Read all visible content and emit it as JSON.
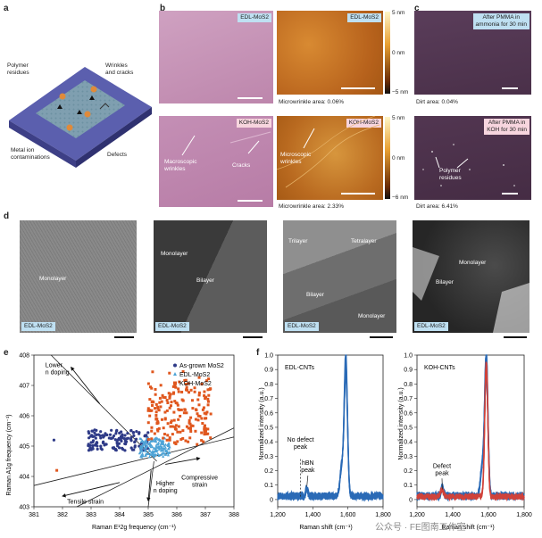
{
  "panel_labels": {
    "a": "a",
    "b": "b",
    "c": "c",
    "d": "d",
    "e": "e",
    "f": "f"
  },
  "panel_a": {
    "labels": {
      "polymer": "Polymer\nresidues",
      "wrinkles": "Wrinkles\nand cracks",
      "metal": "Metal ion\ncontaminations",
      "defects": "Defects"
    }
  },
  "panel_b": {
    "tags": {
      "edl_optical": "EDL-MoS2",
      "edl_afm": "EDL-MoS2",
      "koh_optical": "KOH-MoS2",
      "koh_afm": "KOH-MoS2"
    },
    "captions": {
      "edl": "Microwrinkle area: 0.06%",
      "koh": "Microwrinkle area: 2.33%"
    },
    "annotations": {
      "macro": "Macroscopic\nwrinkles",
      "cracks": "Cracks",
      "micro": "Microscopic\nwrinkles"
    },
    "colorbar_ticks": [
      "5 nm",
      "0 nm",
      "−5 nm"
    ],
    "colorbar_ticks_2": [
      "5 nm",
      "0 nm",
      "−6 nm"
    ],
    "colors": {
      "optical_top": "#c38fb2",
      "optical_bottom": "#bb7ea9",
      "afm": "#c4701f"
    }
  },
  "panel_c": {
    "tags": {
      "top": "After PMMA in\nammonia for 30 min",
      "bottom": "After PMMA in\nKOH for 30 min"
    },
    "captions": {
      "top": "Dirt area: 0.04%",
      "bottom": "Dirt area: 6.41%"
    },
    "annotation": "Polymer\nresidues"
  },
  "panel_d": {
    "images": [
      {
        "tag": "EDL-MoS2",
        "labels": [
          "Monolayer"
        ]
      },
      {
        "tag": "EDL-MoS2",
        "labels": [
          "Monolayer",
          "Bilayer"
        ]
      },
      {
        "tag": "EDL-MoS2",
        "labels": [
          "Trilayer",
          "Tetralayer",
          "Bilayer",
          "Monolayer"
        ]
      },
      {
        "tag": "EDL-MoS2",
        "labels": [
          "Monolayer",
          "Bilayer"
        ]
      }
    ]
  },
  "panel_e": {
    "xlabel": "Raman E¹2g frequency (cm⁻¹)",
    "ylabel": "Raman A1g frequency (cm⁻¹)",
    "annotations": {
      "lower": "Lower\nn doping",
      "higher": "Higher\nn doping",
      "compressive": "Compressive\nstrain",
      "tensile": "Tensile strain"
    },
    "legend": [
      "As-grown MoS2",
      "EDL-MoS2",
      "KOH-MoS2"
    ],
    "colors": {
      "asgrown": "#2e3a87",
      "edl": "#4da3d6",
      "koh": "#e0571e"
    }
  },
  "panel_f": {
    "xlabel": "Raman shift (cm⁻¹)",
    "ylabel": "Normalized intensity (a.u.)",
    "left": {
      "series_label": "EDL-CNTs",
      "annotations": {
        "no_defect": "No defect\npeak",
        "hbn": "hBN\npeak"
      }
    },
    "right": {
      "series_label": "KOH-CNTs",
      "annotations": {
        "defect": "Defect\npeak"
      }
    },
    "colors": {
      "blue": "#2a6ab6",
      "red": "#d0423a"
    }
  },
  "watermark": "公众号 · FE图南工作室",
  "chart_data": [
    {
      "type": "scatter",
      "title": "",
      "xlabel": "Raman E¹2g frequency (cm⁻¹)",
      "ylabel": "Raman A1g frequency (cm⁻¹)",
      "xlim": [
        381,
        388
      ],
      "ylim": [
        403,
        408
      ],
      "x_ticks": [
        "381",
        "382",
        "383",
        "384",
        "385",
        "386",
        "387",
        "388"
      ],
      "y_ticks": [
        "403",
        "404",
        "405",
        "406",
        "407",
        "408"
      ],
      "legend_position": "top-right",
      "series": [
        {
          "name": "As-grown MoS2",
          "cluster": {
            "x_range": [
              382.9,
              385.0
            ],
            "y_range": [
              404.7,
              405.7
            ]
          }
        },
        {
          "name": "EDL-MoS2",
          "cluster": {
            "x_range": [
              384.7,
              385.8
            ],
            "y_range": [
              404.5,
              405.4
            ]
          }
        },
        {
          "name": "KOH-MoS2",
          "cluster": {
            "x_range": [
              385.0,
              387.2
            ],
            "y_range": [
              404.6,
              407.5
            ]
          }
        }
      ]
    },
    {
      "type": "line",
      "title": "",
      "series_label": "EDL-CNTs",
      "xlabel": "Raman shift (cm⁻¹)",
      "ylabel": "Normalized intensity (a.u.)",
      "xlim": [
        1200,
        1800
      ],
      "ylim": [
        -0.05,
        1.0
      ],
      "x_ticks": [
        "1,200",
        "1,400",
        "1,600",
        "1,800"
      ],
      "y_ticks": [
        "0",
        "0.1",
        "0.2",
        "0.3",
        "0.4",
        "0.5",
        "0.6",
        "0.7",
        "0.8",
        "0.9",
        "1.0"
      ],
      "peaks": [
        {
          "x": 1365,
          "y": 0.08,
          "label": "hBN"
        },
        {
          "x": 1590,
          "y": 1.0,
          "label": "G"
        }
      ]
    },
    {
      "type": "line",
      "title": "",
      "series_label": "KOH-CNTs",
      "xlabel": "Raman shift (cm⁻¹)",
      "ylabel": "Normalized intensity (a.u.)",
      "xlim": [
        1200,
        1800
      ],
      "ylim": [
        -0.05,
        1.0
      ],
      "x_ticks": [
        "1,200",
        "1,400",
        "1,600",
        "1,800"
      ],
      "y_ticks": [
        "0",
        "0.1",
        "0.2",
        "0.3",
        "0.4",
        "0.5",
        "0.6",
        "0.7",
        "0.8",
        "0.9",
        "1.0"
      ],
      "peaks": [
        {
          "x": 1340,
          "y": 0.06,
          "label": "D"
        },
        {
          "x": 1590,
          "y": 1.0,
          "label": "G"
        }
      ]
    }
  ]
}
